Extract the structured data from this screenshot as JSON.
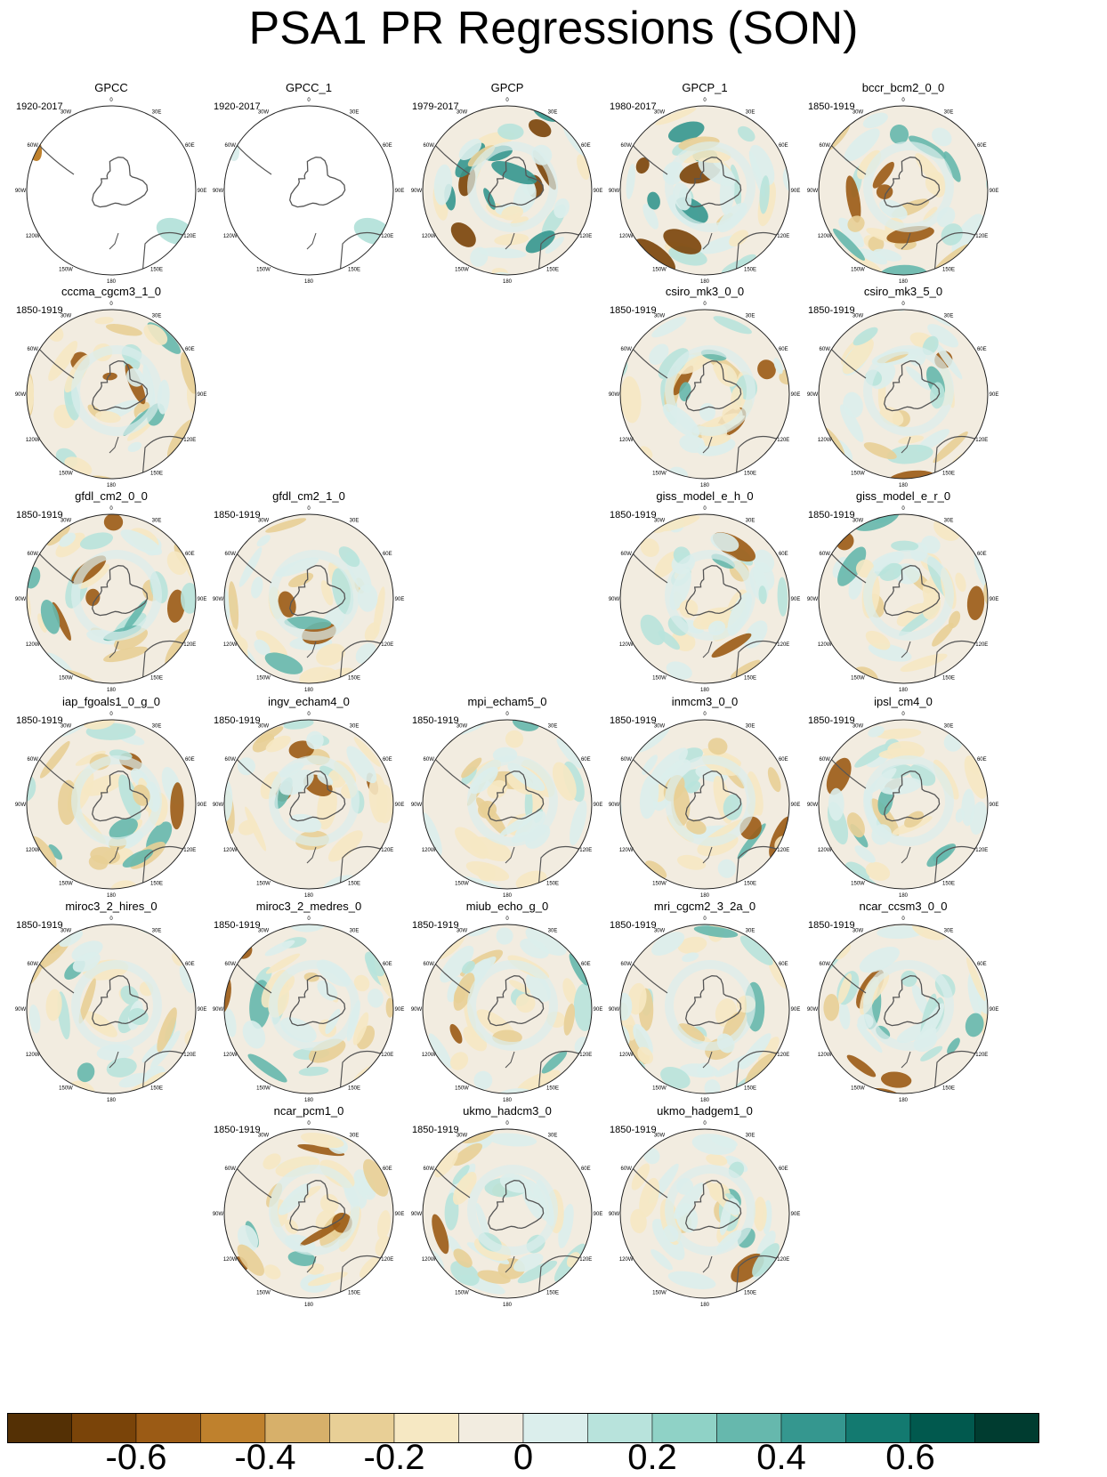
{
  "title": "PSA1 PR Regressions (SON)",
  "colors": {
    "coast": "#555555",
    "outline": "#222222"
  },
  "panels": [
    {
      "title": "GPCC",
      "period": "1920-2017",
      "variant": "gpcc"
    },
    {
      "title": "GPCC_1",
      "period": "1920-2017",
      "variant": "gpcc1"
    },
    {
      "title": "GPCP",
      "period": "1979-2017",
      "variant": "gpcp"
    },
    {
      "title": "GPCP_1",
      "period": "1980-2017",
      "variant": "gpcp"
    },
    {
      "title": "bccr_bcm2_0_0",
      "period": "1850-1919",
      "variant": "model"
    },
    {
      "title": "cccma_cgcm3_1_0",
      "period": "1850-1919",
      "variant": "model"
    },
    {
      "title": "csiro_mk3_0_0",
      "period": "1850-1919",
      "variant": "model"
    },
    {
      "title": "csiro_mk3_5_0",
      "period": "1850-1919",
      "variant": "model"
    },
    {
      "title": "gfdl_cm2_0_0",
      "period": "1850-1919",
      "variant": "model"
    },
    {
      "title": "gfdl_cm2_1_0",
      "period": "1850-1919",
      "variant": "model"
    },
    {
      "title": "giss_model_e_h_0",
      "period": "1850-1919",
      "variant": "model"
    },
    {
      "title": "giss_model_e_r_0",
      "period": "1850-1919",
      "variant": "model"
    },
    {
      "title": "iap_fgoals1_0_g_0",
      "period": "1850-1919",
      "variant": "model"
    },
    {
      "title": "ingv_echam4_0",
      "period": "1850-1919",
      "variant": "model"
    },
    {
      "title": "mpi_echam5_0",
      "period": "1850-1919",
      "variant": "model"
    },
    {
      "title": "inmcm3_0_0",
      "period": "1850-1919",
      "variant": "model"
    },
    {
      "title": "ipsl_cm4_0",
      "period": "1850-1919",
      "variant": "model"
    },
    {
      "title": "miroc3_2_hires_0",
      "period": "1850-1919",
      "variant": "model"
    },
    {
      "title": "miroc3_2_medres_0",
      "period": "1850-1919",
      "variant": "model"
    },
    {
      "title": "miub_echo_g_0",
      "period": "1850-1919",
      "variant": "model"
    },
    {
      "title": "mri_cgcm2_3_2a_0",
      "period": "1850-1919",
      "variant": "model"
    },
    {
      "title": "ncar_ccsm3_0_0",
      "period": "1850-1919",
      "variant": "model"
    },
    {
      "title": "ncar_pcm1_0",
      "period": "1850-1919",
      "variant": "model"
    },
    {
      "title": "ukmo_hadcm3_0",
      "period": "1850-1919",
      "variant": "model"
    },
    {
      "title": "ukmo_hadgem1_0",
      "period": "1850-1919",
      "variant": "model"
    }
  ],
  "map_labels": [
    "0",
    "30E",
    "60E",
    "90E",
    "120E",
    "150E",
    "180",
    "150W",
    "120W",
    "90W",
    "60W",
    "30W"
  ],
  "colorbar": {
    "colors": [
      "#543005",
      "#7a4409",
      "#9b5b15",
      "#bf812d",
      "#d7b06a",
      "#e8cf96",
      "#f6e8c3",
      "#f2ece0",
      "#dbeeec",
      "#b8e3dc",
      "#8fd2c6",
      "#66b8ad",
      "#35978f",
      "#137a70",
      "#01594e",
      "#003c30"
    ],
    "labels": [
      "-0.6",
      "-0.4",
      "-0.2",
      "0",
      "0.2",
      "0.4",
      "0.6"
    ]
  }
}
